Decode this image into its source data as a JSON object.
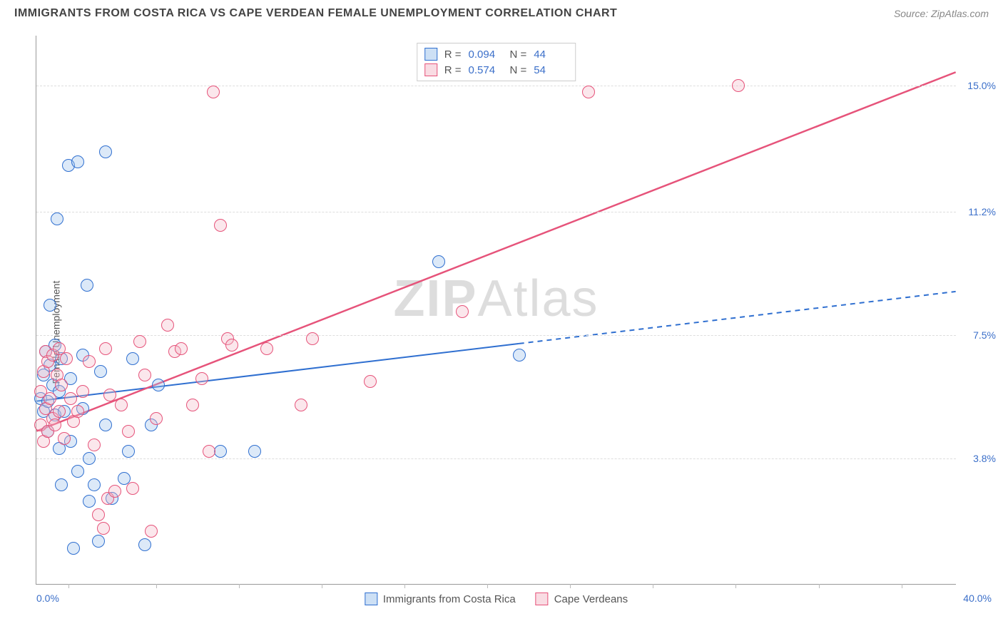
{
  "header": {
    "title": "IMMIGRANTS FROM COSTA RICA VS CAPE VERDEAN FEMALE UNEMPLOYMENT CORRELATION CHART",
    "source_prefix": "Source: ",
    "source_name": "ZipAtlas.com"
  },
  "chart": {
    "type": "scatter",
    "y_axis_label": "Female Unemployment",
    "watermark_bold": "ZIP",
    "watermark_rest": "Atlas",
    "background_color": "#ffffff",
    "grid_color": "#dddddd",
    "axis_color": "#999999",
    "value_color": "#3b6fc9",
    "xlim": [
      0,
      40
    ],
    "ylim": [
      0,
      16.5
    ],
    "x_labels": {
      "min": "0.0%",
      "max": "40.0%"
    },
    "y_ticks": [
      {
        "value": 3.8,
        "label": "3.8%"
      },
      {
        "value": 7.5,
        "label": "7.5%"
      },
      {
        "value": 11.2,
        "label": "11.2%"
      },
      {
        "value": 15.0,
        "label": "15.0%"
      }
    ],
    "x_tick_positions_pct": [
      3.5,
      13,
      22,
      31,
      40,
      49,
      58,
      67,
      76,
      85,
      94
    ],
    "marker_radius": 9,
    "marker_border_width": 1.5,
    "marker_fill_opacity": 0.35,
    "series": [
      {
        "id": "costa_rica",
        "label": "Immigrants from Costa Rica",
        "color_line": "#2f6fd0",
        "color_fill": "#9cc1ec",
        "color_border": "#2f6fd0",
        "R": "0.094",
        "N": "44",
        "regression": {
          "x1": 0,
          "y1": 5.5,
          "x2": 40,
          "y2": 8.8,
          "solid_until_x": 21
        },
        "trend_width": 2,
        "points": [
          [
            0.2,
            5.6
          ],
          [
            0.3,
            6.3
          ],
          [
            0.3,
            5.2
          ],
          [
            0.4,
            7.0
          ],
          [
            0.5,
            5.5
          ],
          [
            0.5,
            4.6
          ],
          [
            0.6,
            6.6
          ],
          [
            0.6,
            8.4
          ],
          [
            0.7,
            6.0
          ],
          [
            0.8,
            5.1
          ],
          [
            0.8,
            7.2
          ],
          [
            0.9,
            11.0
          ],
          [
            1.0,
            4.1
          ],
          [
            1.0,
            5.8
          ],
          [
            1.1,
            6.8
          ],
          [
            1.1,
            3.0
          ],
          [
            1.2,
            5.2
          ],
          [
            1.4,
            12.6
          ],
          [
            1.5,
            4.3
          ],
          [
            1.5,
            6.2
          ],
          [
            1.6,
            1.1
          ],
          [
            1.8,
            3.4
          ],
          [
            1.8,
            12.7
          ],
          [
            2.0,
            6.9
          ],
          [
            2.0,
            5.3
          ],
          [
            2.2,
            9.0
          ],
          [
            2.3,
            2.5
          ],
          [
            2.3,
            3.8
          ],
          [
            2.5,
            3.0
          ],
          [
            2.7,
            1.3
          ],
          [
            2.8,
            6.4
          ],
          [
            3.0,
            4.8
          ],
          [
            3.0,
            13.0
          ],
          [
            3.3,
            2.6
          ],
          [
            3.8,
            3.2
          ],
          [
            4.0,
            4.0
          ],
          [
            4.2,
            6.8
          ],
          [
            4.7,
            1.2
          ],
          [
            5.0,
            4.8
          ],
          [
            5.3,
            6.0
          ],
          [
            8.0,
            4.0
          ],
          [
            9.5,
            4.0
          ],
          [
            17.5,
            9.7
          ],
          [
            21.0,
            6.9
          ]
        ]
      },
      {
        "id": "cape_verdean",
        "label": "Cape Verdeans",
        "color_line": "#e6537a",
        "color_fill": "#f4b9c8",
        "color_border": "#e6537a",
        "R": "0.574",
        "N": "54",
        "regression": {
          "x1": 0,
          "y1": 4.6,
          "x2": 40,
          "y2": 15.4,
          "solid_until_x": 40
        },
        "trend_width": 2.5,
        "points": [
          [
            0.2,
            4.8
          ],
          [
            0.2,
            5.8
          ],
          [
            0.3,
            6.4
          ],
          [
            0.3,
            4.3
          ],
          [
            0.4,
            5.3
          ],
          [
            0.4,
            7.0
          ],
          [
            0.5,
            6.7
          ],
          [
            0.5,
            4.6
          ],
          [
            0.6,
            5.6
          ],
          [
            0.7,
            5.0
          ],
          [
            0.7,
            6.9
          ],
          [
            0.8,
            4.8
          ],
          [
            0.9,
            6.3
          ],
          [
            1.0,
            5.2
          ],
          [
            1.0,
            7.1
          ],
          [
            1.1,
            6.0
          ],
          [
            1.2,
            4.4
          ],
          [
            1.3,
            6.8
          ],
          [
            1.5,
            5.6
          ],
          [
            1.6,
            4.9
          ],
          [
            1.8,
            5.2
          ],
          [
            2.0,
            5.8
          ],
          [
            2.3,
            6.7
          ],
          [
            2.5,
            4.2
          ],
          [
            2.7,
            2.1
          ],
          [
            2.9,
            1.7
          ],
          [
            3.0,
            7.1
          ],
          [
            3.1,
            2.6
          ],
          [
            3.2,
            5.7
          ],
          [
            3.4,
            2.8
          ],
          [
            3.7,
            5.4
          ],
          [
            4.0,
            4.6
          ],
          [
            4.2,
            2.9
          ],
          [
            4.5,
            7.3
          ],
          [
            4.7,
            6.3
          ],
          [
            5.0,
            1.6
          ],
          [
            5.2,
            5.0
          ],
          [
            5.7,
            7.8
          ],
          [
            6.0,
            7.0
          ],
          [
            6.3,
            7.1
          ],
          [
            6.8,
            5.4
          ],
          [
            7.2,
            6.2
          ],
          [
            7.5,
            4.0
          ],
          [
            7.7,
            14.8
          ],
          [
            8.0,
            10.8
          ],
          [
            8.3,
            7.4
          ],
          [
            8.5,
            7.2
          ],
          [
            10.0,
            7.1
          ],
          [
            11.5,
            5.4
          ],
          [
            12.0,
            7.4
          ],
          [
            14.5,
            6.1
          ],
          [
            18.5,
            8.2
          ],
          [
            24.0,
            14.8
          ],
          [
            30.5,
            15.0
          ]
        ]
      }
    ]
  },
  "legend": {
    "stats_rows": [
      {
        "series": 0
      },
      {
        "series": 1
      }
    ]
  }
}
